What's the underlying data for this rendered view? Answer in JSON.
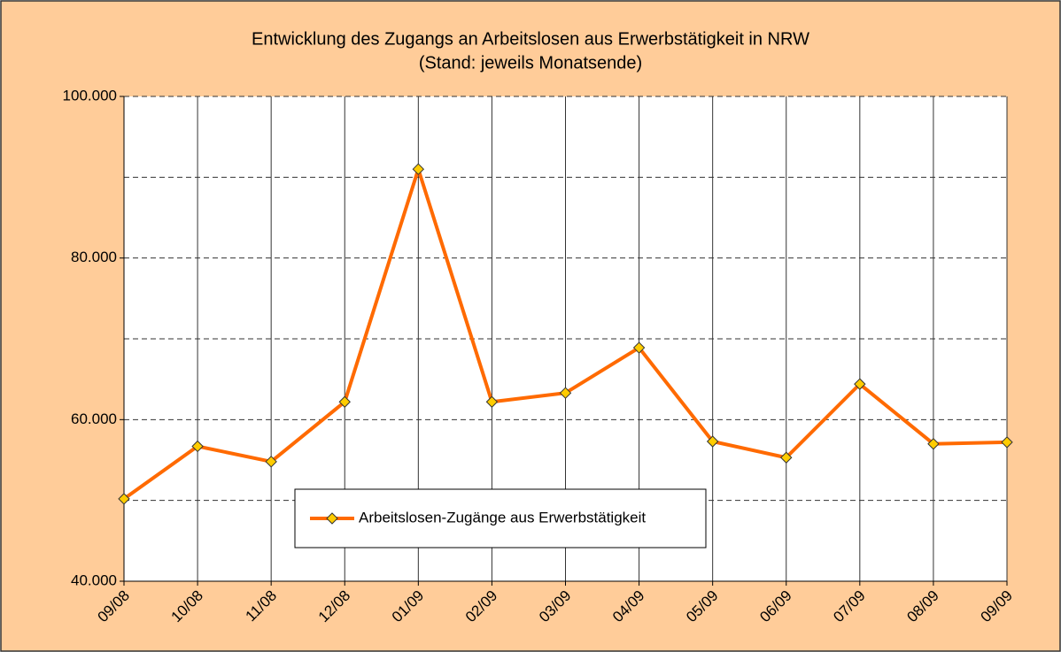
{
  "chart_data": {
    "type": "line",
    "title": "Entwicklung des Zugangs an Arbeitslosen aus Erwerbstätigkeit in NRW",
    "subtitle": "(Stand: jeweils Monatsende)",
    "categories": [
      "09/08",
      "10/08",
      "11/08",
      "12/08",
      "01/09",
      "02/09",
      "03/09",
      "04/09",
      "05/09",
      "06/09",
      "07/09",
      "08/09",
      "09/09"
    ],
    "series": [
      {
        "name": "Arbeitslosen-Zugänge aus Erwerbstätigkeit",
        "color": "#ff6a00",
        "marker_color": "#ffcc00",
        "values": [
          50200,
          56700,
          54800,
          62200,
          91000,
          62200,
          63300,
          68900,
          57300,
          55300,
          64400,
          57000,
          57200
        ]
      }
    ],
    "ylim": [
      40000,
      100000
    ],
    "yticks": [
      {
        "value": 40000,
        "label": "40.000"
      },
      {
        "value": 60000,
        "label": "60.000"
      },
      {
        "value": 80000,
        "label": "80.000"
      },
      {
        "value": 100000,
        "label": "100.000"
      }
    ],
    "minor_yticks": [
      50000,
      70000,
      90000
    ],
    "grid": true
  }
}
